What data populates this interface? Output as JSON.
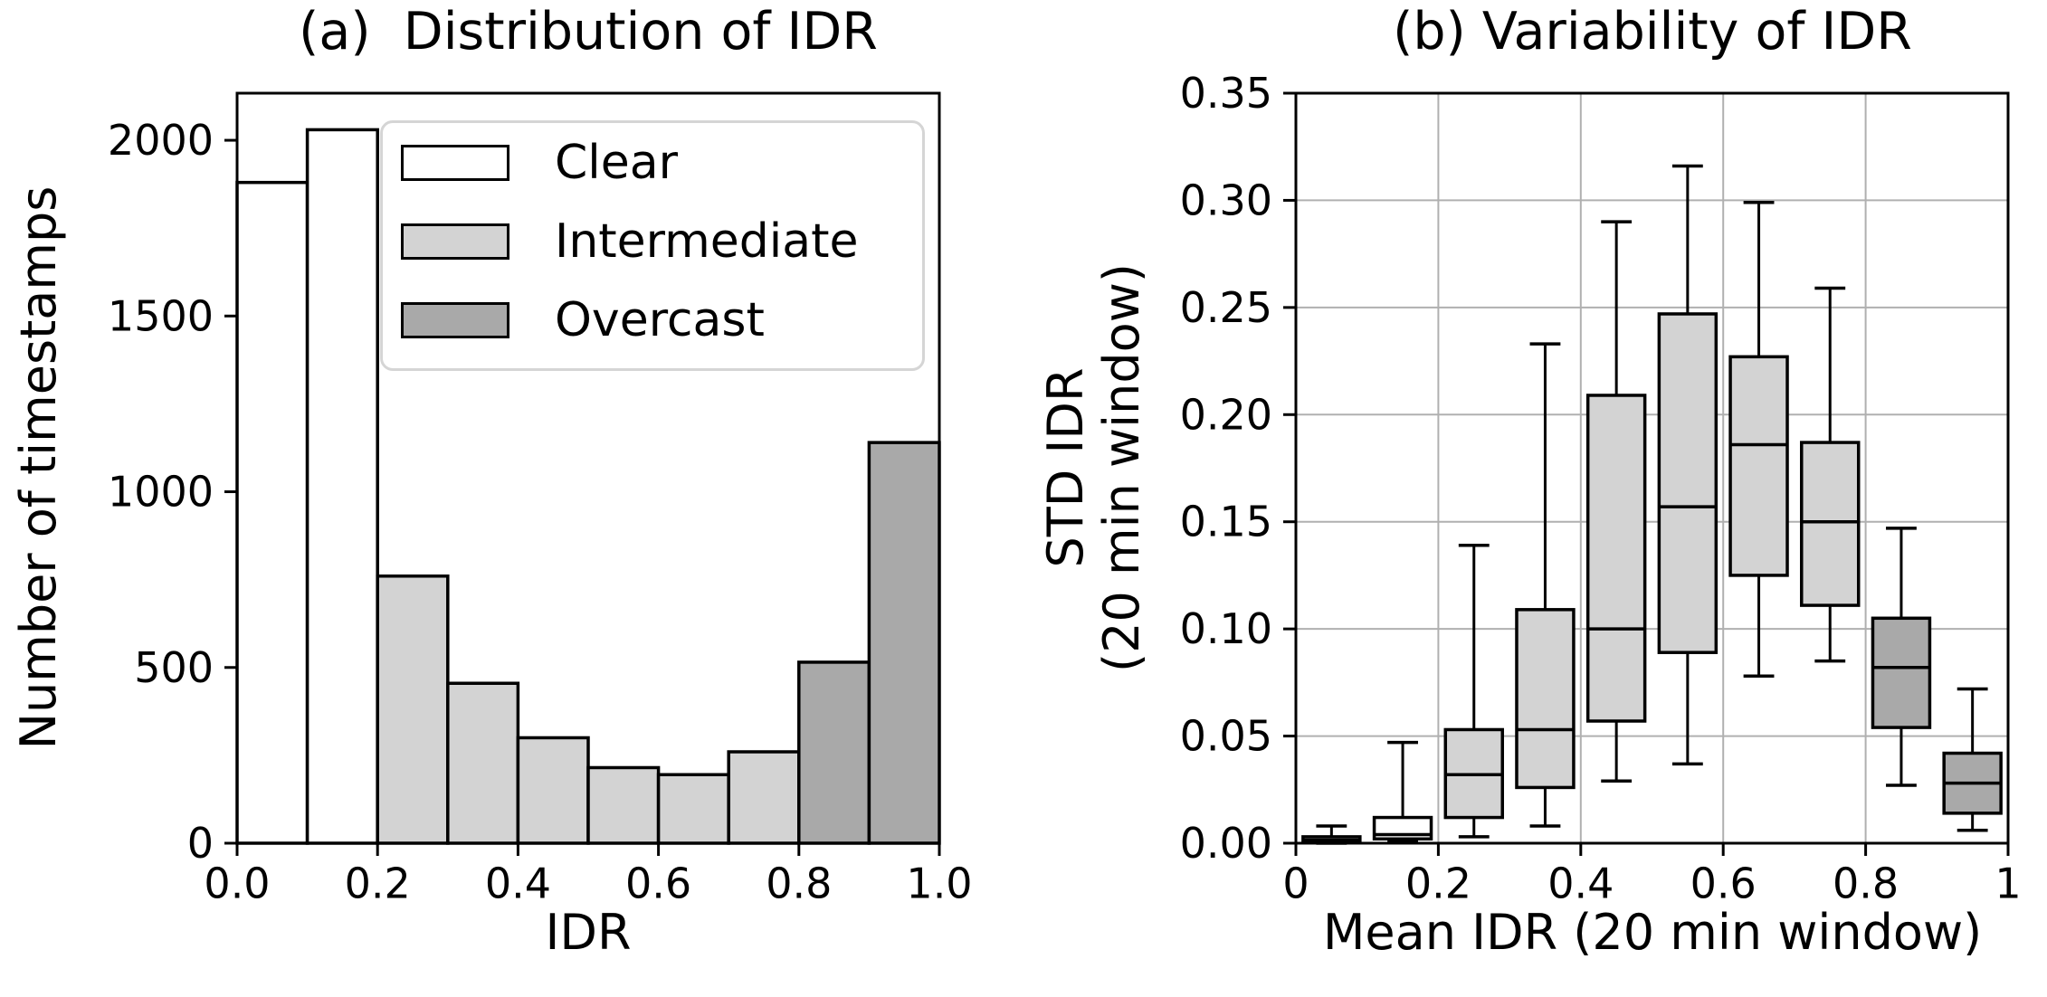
{
  "colors": {
    "clear": "#ffffff",
    "intermediate": "#d3d3d3",
    "overcast": "#a9a9a9",
    "edge": "#000000",
    "grid": "#b0b0b0",
    "legend_border": "#d5d5d5"
  },
  "legend": {
    "items": [
      {
        "label": "Clear",
        "category": "clear"
      },
      {
        "label": "Intermediate",
        "category": "intermediate"
      },
      {
        "label": "Overcast",
        "category": "overcast"
      }
    ]
  },
  "chart_data": [
    {
      "type": "bar",
      "subtype": "histogram",
      "title": "(a)  Distribution of IDR",
      "xlabel": "IDR",
      "ylabel": "Number of timestamps",
      "xlim": [
        0,
        1
      ],
      "ylim": [
        0,
        2134
      ],
      "grid": false,
      "legend_position": "upper center",
      "bin_edges": [
        0,
        0.1,
        0.2,
        0.3,
        0.4,
        0.5,
        0.6,
        0.7,
        0.8,
        0.9,
        1.0
      ],
      "counts": [
        1880,
        2030,
        760,
        455,
        300,
        215,
        195,
        260,
        515,
        1140
      ],
      "bar_categories": [
        "clear",
        "clear",
        "intermediate",
        "intermediate",
        "intermediate",
        "intermediate",
        "intermediate",
        "intermediate",
        "overcast",
        "overcast"
      ],
      "xticks": {
        "values": [
          0,
          0.2,
          0.4,
          0.6,
          0.8,
          1
        ],
        "labels": [
          "0.0",
          "0.2",
          "0.4",
          "0.6",
          "0.8",
          "1.0"
        ]
      },
      "yticks": {
        "values": [
          0,
          500,
          1000,
          1500,
          2000
        ],
        "labels": [
          "0",
          "500",
          "1000",
          "1500",
          "2000"
        ]
      }
    },
    {
      "type": "boxplot",
      "title": "(b) Variability of IDR",
      "xlabel": "Mean IDR (20 min window)",
      "ylabel_lines": [
        "STD IDR",
        "(20 min window)"
      ],
      "xlim": [
        0,
        1
      ],
      "ylim": [
        0,
        0.35
      ],
      "grid": true,
      "box_width": 0.08,
      "cap_width": 0.043,
      "xticks": {
        "values": [
          0,
          0.2,
          0.4,
          0.6,
          0.8,
          1
        ],
        "labels": [
          "0",
          "0.2",
          "0.4",
          "0.6",
          "0.8",
          "1"
        ]
      },
      "yticks": {
        "values": [
          0,
          0.05,
          0.1,
          0.15,
          0.2,
          0.25,
          0.3,
          0.35
        ],
        "labels": [
          "0.00",
          "0.05",
          "0.10",
          "0.15",
          "0.20",
          "0.25",
          "0.30",
          "0.35"
        ]
      },
      "boxes": [
        {
          "x": 0.05,
          "whislo": 0.0,
          "q1": 0.0005,
          "med": 0.0015,
          "q3": 0.003,
          "whishi": 0.008,
          "category": "clear"
        },
        {
          "x": 0.15,
          "whislo": 0.001,
          "q1": 0.002,
          "med": 0.004,
          "q3": 0.012,
          "whishi": 0.047,
          "category": "clear"
        },
        {
          "x": 0.25,
          "whislo": 0.003,
          "q1": 0.012,
          "med": 0.032,
          "q3": 0.053,
          "whishi": 0.139,
          "category": "intermediate"
        },
        {
          "x": 0.35,
          "whislo": 0.008,
          "q1": 0.026,
          "med": 0.053,
          "q3": 0.109,
          "whishi": 0.233,
          "category": "intermediate"
        },
        {
          "x": 0.45,
          "whislo": 0.029,
          "q1": 0.057,
          "med": 0.1,
          "q3": 0.209,
          "whishi": 0.29,
          "category": "intermediate"
        },
        {
          "x": 0.55,
          "whislo": 0.037,
          "q1": 0.089,
          "med": 0.157,
          "q3": 0.247,
          "whishi": 0.316,
          "category": "intermediate"
        },
        {
          "x": 0.65,
          "whislo": 0.078,
          "q1": 0.125,
          "med": 0.186,
          "q3": 0.227,
          "whishi": 0.299,
          "category": "intermediate"
        },
        {
          "x": 0.75,
          "whislo": 0.085,
          "q1": 0.111,
          "med": 0.15,
          "q3": 0.187,
          "whishi": 0.259,
          "category": "intermediate"
        },
        {
          "x": 0.85,
          "whislo": 0.027,
          "q1": 0.054,
          "med": 0.082,
          "q3": 0.105,
          "whishi": 0.147,
          "category": "overcast"
        },
        {
          "x": 0.95,
          "whislo": 0.006,
          "q1": 0.014,
          "med": 0.028,
          "q3": 0.042,
          "whishi": 0.072,
          "category": "overcast"
        }
      ]
    }
  ]
}
